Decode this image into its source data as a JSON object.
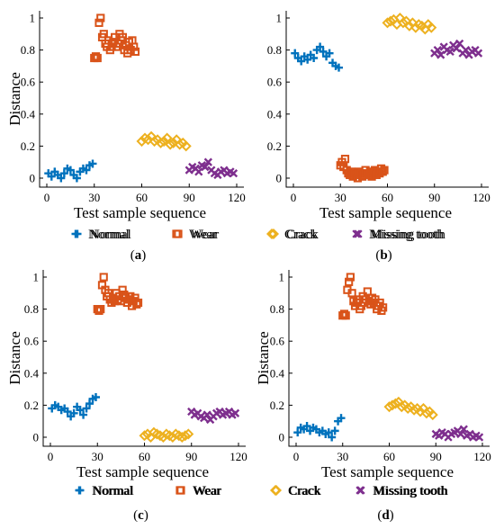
{
  "figure": {
    "colors": {
      "Normal": "#0072BD",
      "Wear": "#D95319",
      "Crack": "#EDB120",
      "Missing tooth": "#7E2F8E"
    },
    "markers": {
      "Normal": "plus",
      "Wear": "square",
      "Crack": "diamond",
      "Missing tooth": "x"
    }
  },
  "chart_data": [
    {
      "type": "scatter",
      "panel_label": "(a)",
      "xlabel": "Test sample sequence",
      "ylabel": "Distance",
      "xlim": [
        0,
        120
      ],
      "ylim": [
        0,
        1
      ],
      "xticks": [
        0,
        30,
        60,
        90,
        120
      ],
      "yticks": [
        0,
        0.2,
        0.4,
        0.6,
        0.8,
        1
      ],
      "legend": [
        "Normal",
        "Wear",
        "Crack",
        "Missing tooth"
      ],
      "series": [
        {
          "name": "Normal",
          "x": [
            1,
            3,
            5,
            7,
            9,
            11,
            13,
            15,
            17,
            19,
            21,
            23,
            25,
            27,
            29
          ],
          "y": [
            0.03,
            0.01,
            0.04,
            0.02,
            0.0,
            0.03,
            0.06,
            0.05,
            0.02,
            0.0,
            0.04,
            0.06,
            0.05,
            0.08,
            0.09
          ]
        },
        {
          "name": "Wear",
          "x": [
            30,
            31,
            32,
            33,
            34,
            35,
            36,
            37,
            38,
            39,
            40,
            41,
            42,
            43,
            44,
            45,
            46,
            47,
            48,
            49,
            50,
            51,
            52,
            53,
            54,
            55,
            56
          ],
          "y": [
            0.75,
            0.76,
            0.75,
            0.97,
            1.0,
            0.88,
            0.9,
            0.84,
            0.82,
            0.86,
            0.8,
            0.82,
            0.85,
            0.88,
            0.82,
            0.84,
            0.9,
            0.86,
            0.88,
            0.8,
            0.83,
            0.78,
            0.85,
            0.8,
            0.86,
            0.82,
            0.79
          ]
        },
        {
          "name": "Crack",
          "x": [
            60,
            62,
            64,
            66,
            68,
            70,
            72,
            74,
            76,
            78,
            80,
            82,
            84,
            86,
            88
          ],
          "y": [
            0.23,
            0.25,
            0.24,
            0.26,
            0.23,
            0.24,
            0.22,
            0.23,
            0.25,
            0.21,
            0.22,
            0.24,
            0.21,
            0.22,
            0.2
          ]
        },
        {
          "name": "Missing tooth",
          "x": [
            90,
            92,
            94,
            96,
            98,
            100,
            102,
            104,
            106,
            108,
            110,
            112,
            114,
            116,
            118
          ],
          "y": [
            0.05,
            0.07,
            0.06,
            0.04,
            0.08,
            0.07,
            0.1,
            0.05,
            0.03,
            0.02,
            0.04,
            0.05,
            0.03,
            0.04,
            0.03
          ]
        }
      ]
    },
    {
      "type": "scatter",
      "panel_label": "(b)",
      "xlabel": "Test sample sequence",
      "ylabel": "",
      "xlim": [
        0,
        120
      ],
      "ylim": [
        0,
        1
      ],
      "xticks": [
        0,
        30,
        60,
        90,
        120
      ],
      "yticks": [
        0,
        0.2,
        0.4,
        0.6,
        0.8,
        1
      ],
      "legend": [
        "Normal",
        "Wear",
        "Crack",
        "Missing tooth"
      ],
      "series": [
        {
          "name": "Normal",
          "x": [
            1,
            3,
            5,
            7,
            9,
            11,
            13,
            15,
            17,
            19,
            21,
            23,
            25,
            27,
            29
          ],
          "y": [
            0.78,
            0.75,
            0.73,
            0.76,
            0.74,
            0.77,
            0.75,
            0.8,
            0.82,
            0.79,
            0.76,
            0.78,
            0.72,
            0.7,
            0.69
          ]
        },
        {
          "name": "Wear",
          "x": [
            30,
            31,
            32,
            33,
            34,
            35,
            36,
            37,
            38,
            39,
            40,
            41,
            42,
            43,
            44,
            45,
            46,
            47,
            48,
            49,
            50,
            51,
            52,
            53,
            54,
            55,
            56,
            57,
            58
          ],
          "y": [
            0.08,
            0.1,
            0.07,
            0.12,
            0.05,
            0.03,
            0.02,
            0.04,
            0.01,
            0.03,
            0.02,
            0.0,
            0.04,
            0.03,
            0.01,
            0.02,
            0.05,
            0.03,
            0.02,
            0.04,
            0.01,
            0.03,
            0.05,
            0.02,
            0.04,
            0.03,
            0.06,
            0.04,
            0.05
          ]
        },
        {
          "name": "Crack",
          "x": [
            60,
            62,
            64,
            66,
            68,
            70,
            72,
            74,
            76,
            78,
            80,
            82,
            84,
            86,
            88
          ],
          "y": [
            0.97,
            0.98,
            0.99,
            0.96,
            1.0,
            0.97,
            0.98,
            0.95,
            0.97,
            0.94,
            0.96,
            0.95,
            0.93,
            0.96,
            0.94
          ]
        },
        {
          "name": "Missing tooth",
          "x": [
            90,
            92,
            94,
            96,
            98,
            100,
            102,
            104,
            106,
            108,
            110,
            112,
            114,
            116,
            118
          ],
          "y": [
            0.78,
            0.8,
            0.77,
            0.82,
            0.8,
            0.79,
            0.83,
            0.81,
            0.84,
            0.78,
            0.8,
            0.77,
            0.79,
            0.8,
            0.78
          ]
        }
      ]
    },
    {
      "type": "scatter",
      "panel_label": "(c)",
      "xlabel": "Test sample sequence",
      "ylabel": "Distance",
      "xlim": [
        0,
        120
      ],
      "ylim": [
        0,
        1
      ],
      "xticks": [
        0,
        30,
        60,
        90,
        120
      ],
      "yticks": [
        0,
        0.2,
        0.4,
        0.6,
        0.8,
        1
      ],
      "legend": [
        "Normal",
        "Wear",
        "Crack",
        "Missing tooth"
      ],
      "series": [
        {
          "name": "Normal",
          "x": [
            1,
            3,
            5,
            7,
            9,
            11,
            13,
            15,
            17,
            19,
            21,
            23,
            25,
            27,
            29
          ],
          "y": [
            0.18,
            0.2,
            0.19,
            0.17,
            0.18,
            0.16,
            0.13,
            0.15,
            0.19,
            0.17,
            0.14,
            0.18,
            0.21,
            0.24,
            0.25
          ]
        },
        {
          "name": "Wear",
          "x": [
            30,
            31,
            32,
            33,
            34,
            35,
            36,
            37,
            38,
            39,
            40,
            41,
            42,
            43,
            44,
            45,
            46,
            47,
            48,
            49,
            50,
            51,
            52,
            53,
            54,
            55,
            56
          ],
          "y": [
            0.8,
            0.79,
            0.8,
            0.95,
            1.0,
            0.92,
            0.88,
            0.9,
            0.86,
            0.84,
            0.87,
            0.85,
            0.9,
            0.86,
            0.88,
            0.85,
            0.92,
            0.89,
            0.87,
            0.84,
            0.86,
            0.88,
            0.82,
            0.85,
            0.87,
            0.83,
            0.84
          ]
        },
        {
          "name": "Crack",
          "x": [
            60,
            62,
            64,
            66,
            68,
            70,
            72,
            74,
            76,
            78,
            80,
            82,
            84,
            86,
            88
          ],
          "y": [
            0.01,
            0.02,
            0.0,
            0.03,
            0.02,
            0.01,
            0.0,
            0.02,
            0.01,
            0.0,
            0.02,
            0.01,
            0.0,
            0.01,
            0.02
          ]
        },
        {
          "name": "Missing tooth",
          "x": [
            90,
            92,
            94,
            96,
            98,
            100,
            102,
            104,
            106,
            108,
            110,
            112,
            114,
            116,
            118
          ],
          "y": [
            0.16,
            0.14,
            0.15,
            0.13,
            0.12,
            0.14,
            0.11,
            0.13,
            0.15,
            0.16,
            0.14,
            0.15,
            0.16,
            0.14,
            0.15
          ]
        }
      ]
    },
    {
      "type": "scatter",
      "panel_label": "(d)",
      "xlabel": "Test sample sequence",
      "ylabel": "Distance",
      "xlim": [
        0,
        120
      ],
      "ylim": [
        0,
        1
      ],
      "xticks": [
        0,
        30,
        60,
        90,
        120
      ],
      "yticks": [
        0,
        0.2,
        0.4,
        0.6,
        0.8,
        1
      ],
      "legend": [
        "Normal",
        "Wear",
        "Crack",
        "Missing tooth"
      ],
      "series": [
        {
          "name": "Normal",
          "x": [
            1,
            3,
            5,
            7,
            9,
            11,
            13,
            15,
            17,
            19,
            21,
            23,
            25,
            27,
            29
          ],
          "y": [
            0.03,
            0.06,
            0.05,
            0.07,
            0.04,
            0.06,
            0.05,
            0.03,
            0.04,
            0.02,
            0.03,
            0.0,
            0.04,
            0.1,
            0.12
          ]
        },
        {
          "name": "Wear",
          "x": [
            30,
            31,
            32,
            33,
            34,
            35,
            36,
            37,
            38,
            39,
            40,
            41,
            42,
            43,
            44,
            45,
            46,
            47,
            48,
            49,
            50,
            51,
            52,
            53,
            54,
            55,
            56
          ],
          "y": [
            0.76,
            0.77,
            0.76,
            0.92,
            0.97,
            1.0,
            0.9,
            0.85,
            0.82,
            0.84,
            0.86,
            0.8,
            0.82,
            0.88,
            0.84,
            0.86,
            0.91,
            0.85,
            0.83,
            0.87,
            0.84,
            0.86,
            0.8,
            0.82,
            0.84,
            0.79,
            0.81
          ]
        },
        {
          "name": "Crack",
          "x": [
            60,
            62,
            64,
            66,
            68,
            70,
            72,
            74,
            76,
            78,
            80,
            82,
            84,
            86,
            88
          ],
          "y": [
            0.19,
            0.2,
            0.21,
            0.22,
            0.19,
            0.2,
            0.18,
            0.19,
            0.17,
            0.18,
            0.16,
            0.18,
            0.15,
            0.16,
            0.14
          ]
        },
        {
          "name": "Missing tooth",
          "x": [
            90,
            92,
            94,
            96,
            98,
            100,
            102,
            104,
            106,
            108,
            110,
            112,
            114,
            116,
            118
          ],
          "y": [
            0.02,
            0.01,
            0.03,
            0.02,
            0.0,
            0.02,
            0.03,
            0.04,
            0.02,
            0.05,
            0.01,
            0.02,
            0.0,
            0.01,
            0.0
          ]
        }
      ]
    }
  ]
}
